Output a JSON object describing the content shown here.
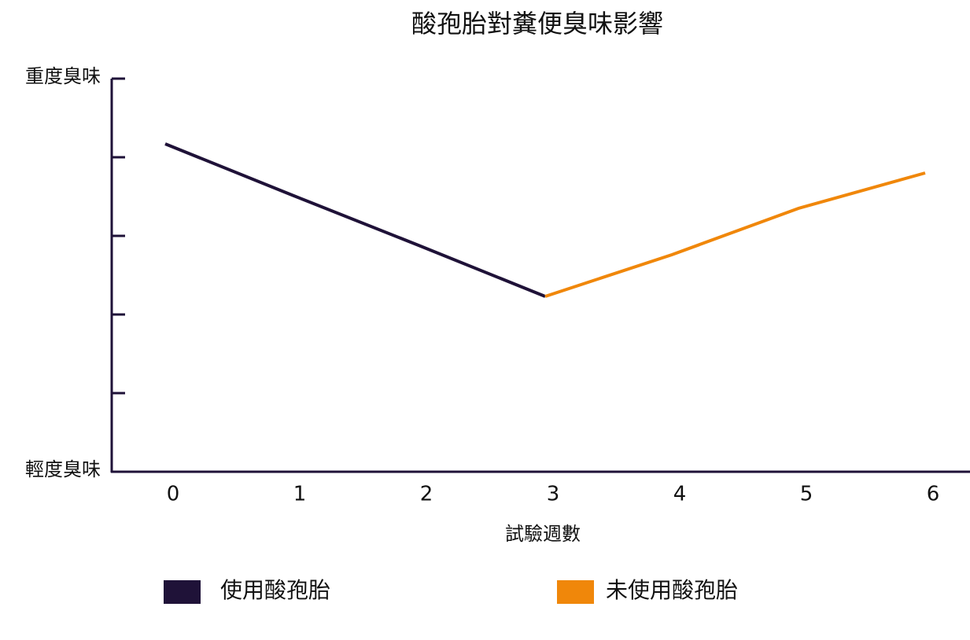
{
  "chart_data": {
    "type": "line",
    "title": "酸孢胎對糞便臭味影響",
    "x_label": "試驗週數",
    "categories": [
      "0",
      "1",
      "2",
      "3",
      "4",
      "5",
      "6"
    ],
    "series": [
      {
        "name": "使用酸孢胎",
        "color": "#1f1238",
        "values": [
          4.17,
          3.52,
          2.88,
          2.23,
          null,
          null,
          null
        ]
      },
      {
        "name": "未使用酸孢胎",
        "color": "#f0870a",
        "values": [
          null,
          null,
          null,
          2.23,
          2.76,
          3.35,
          3.8
        ]
      }
    ],
    "ylim": [
      0,
      5
    ],
    "yticks": [
      {
        "value": 0,
        "label": "輕度臭味"
      },
      1,
      2,
      3,
      4,
      {
        "value": 5,
        "label": "重度臭味"
      }
    ],
    "grid": false,
    "legend": "bottom"
  }
}
